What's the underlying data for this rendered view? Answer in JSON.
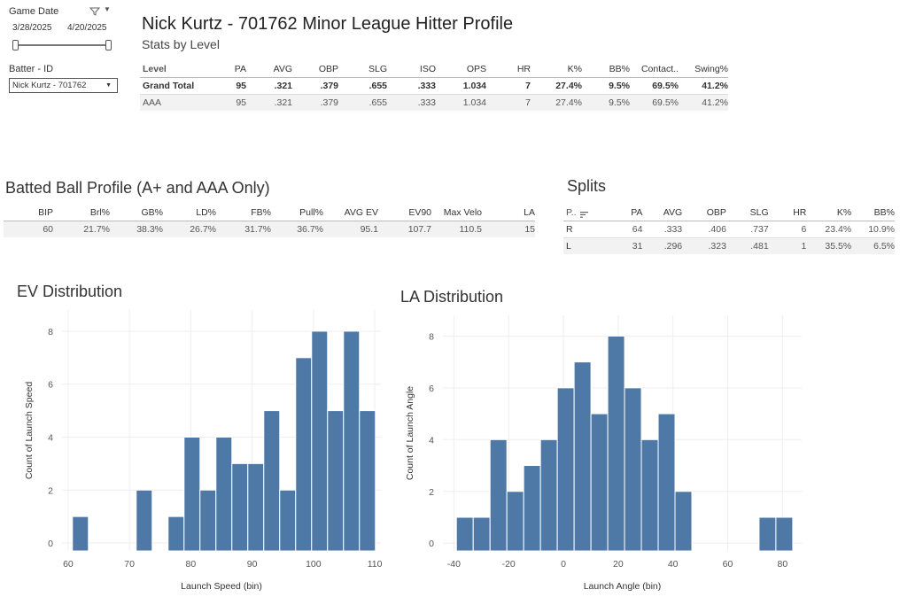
{
  "filters": {
    "game_date_label": "Game Date",
    "start_date": "3/28/2025",
    "end_date": "4/20/2025",
    "batter_label": "Batter - ID",
    "batter_value": "Nick Kurtz - 701762"
  },
  "header": {
    "title": "Nick Kurtz - 701762 Minor League Hitter Profile",
    "subtitle": "Stats by Level"
  },
  "level_table": {
    "columns": [
      "Level",
      "PA",
      "AVG",
      "OBP",
      "SLG",
      "ISO",
      "OPS",
      "HR",
      "K%",
      "BB%",
      "Contact..",
      "Swing%"
    ],
    "rows": [
      [
        "Grand Total",
        "95",
        ".321",
        ".379",
        ".655",
        ".333",
        "1.034",
        "7",
        "27.4%",
        "9.5%",
        "69.5%",
        "41.2%"
      ],
      [
        "AAA",
        "95",
        ".321",
        ".379",
        ".655",
        ".333",
        "1.034",
        "7",
        "27.4%",
        "9.5%",
        "69.5%",
        "41.2%"
      ]
    ]
  },
  "batted_ball": {
    "title": "Batted Ball Profile (A+ and AAA Only)",
    "columns": [
      "BIP",
      "Brl%",
      "GB%",
      "LD%",
      "FB%",
      "Pull%",
      "AVG EV",
      "EV90",
      "Max Velo",
      "LA"
    ],
    "rows": [
      [
        "60",
        "21.7%",
        "38.3%",
        "26.7%",
        "31.7%",
        "36.7%",
        "95.1",
        "107.7",
        "110.5",
        "15"
      ]
    ]
  },
  "splits": {
    "title": "Splits",
    "columns": [
      "P..",
      "PA",
      "AVG",
      "OBP",
      "SLG",
      "HR",
      "K%",
      "BB%"
    ],
    "rows": [
      [
        "R",
        "64",
        ".333",
        ".406",
        ".737",
        "6",
        "23.4%",
        "10.9%"
      ],
      [
        "L",
        "31",
        ".296",
        ".323",
        ".481",
        "1",
        "35.5%",
        "6.5%"
      ]
    ]
  },
  "colors": {
    "bar": "#4e79a7",
    "grid": "#eeeeee"
  },
  "chart_data": [
    {
      "type": "bar",
      "title": "EV Distribution",
      "xlabel": "Launch Speed (bin)",
      "ylabel": "Count of Launch Speed",
      "xlim": [
        59,
        111
      ],
      "ylim": [
        -0.3,
        8.8
      ],
      "xticks": [
        60,
        70,
        80,
        90,
        100,
        110
      ],
      "yticks": [
        0,
        2,
        4,
        6,
        8
      ],
      "bin_width": 2.6,
      "bins": [
        {
          "x": 62.0,
          "count": 1
        },
        {
          "x": 72.4,
          "count": 2
        },
        {
          "x": 77.6,
          "count": 1
        },
        {
          "x": 80.2,
          "count": 4
        },
        {
          "x": 82.8,
          "count": 2
        },
        {
          "x": 85.4,
          "count": 4
        },
        {
          "x": 88.0,
          "count": 3
        },
        {
          "x": 90.6,
          "count": 3
        },
        {
          "x": 93.2,
          "count": 5
        },
        {
          "x": 95.8,
          "count": 2
        },
        {
          "x": 98.4,
          "count": 7
        },
        {
          "x": 101.0,
          "count": 8
        },
        {
          "x": 103.6,
          "count": 5
        },
        {
          "x": 106.2,
          "count": 8
        },
        {
          "x": 108.8,
          "count": 5
        }
      ]
    },
    {
      "type": "bar",
      "title": "LA Distribution",
      "xlabel": "Launch Angle (bin)",
      "ylabel": "Count of Launch Angle",
      "xlim": [
        -44,
        87
      ],
      "ylim": [
        -0.3,
        8.8
      ],
      "xticks": [
        -40,
        -20,
        0,
        20,
        40,
        60,
        80
      ],
      "yticks": [
        0,
        2,
        4,
        6,
        8
      ],
      "bin_width": 6.14,
      "bins": [
        {
          "x": -36.0,
          "count": 1
        },
        {
          "x": -29.86,
          "count": 1
        },
        {
          "x": -23.72,
          "count": 4
        },
        {
          "x": -17.58,
          "count": 2
        },
        {
          "x": -11.44,
          "count": 3
        },
        {
          "x": -5.3,
          "count": 4
        },
        {
          "x": 0.84,
          "count": 6
        },
        {
          "x": 6.98,
          "count": 7
        },
        {
          "x": 13.12,
          "count": 5
        },
        {
          "x": 19.26,
          "count": 8
        },
        {
          "x": 25.4,
          "count": 6
        },
        {
          "x": 31.54,
          "count": 4
        },
        {
          "x": 37.68,
          "count": 5
        },
        {
          "x": 43.82,
          "count": 2
        },
        {
          "x": 74.52,
          "count": 1
        },
        {
          "x": 80.66,
          "count": 1
        }
      ]
    }
  ]
}
